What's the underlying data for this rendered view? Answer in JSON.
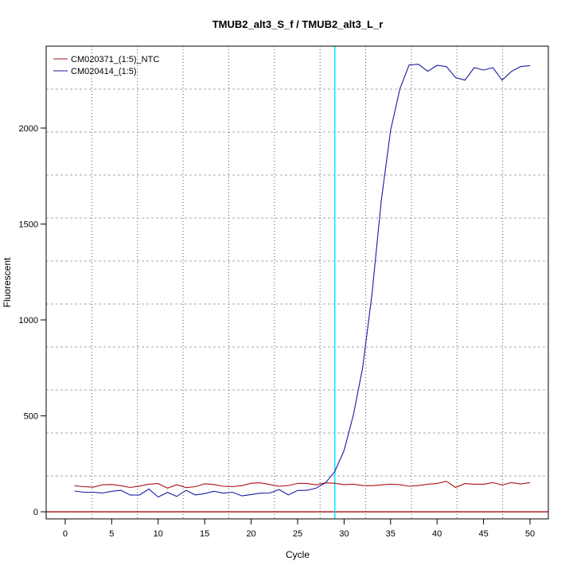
{
  "chart_data": {
    "type": "line",
    "title": "TMUB2_alt3_S_f / TMUB2_alt3_L_r",
    "xlabel": "Cycle",
    "ylabel": "Fluorescent",
    "xlim": [
      -2.05,
      51.97
    ],
    "ylim": [
      -37,
      2427
    ],
    "xticks": [
      0,
      5,
      10,
      15,
      20,
      25,
      30,
      35,
      40,
      45,
      50
    ],
    "yticks": [
      0,
      500,
      1000,
      1500,
      2000
    ],
    "grid": true,
    "legend_position": "top-left",
    "threshold_cycle": 29,
    "baseline": 0,
    "colors": {
      "threshold": "#00e5ff",
      "baseline": "#b22222"
    },
    "x": [
      1,
      2,
      3,
      4,
      5,
      6,
      7,
      8,
      9,
      10,
      11,
      12,
      13,
      14,
      15,
      16,
      17,
      18,
      19,
      20,
      21,
      22,
      23,
      24,
      25,
      26,
      27,
      28,
      29,
      30,
      31,
      32,
      33,
      34,
      35,
      36,
      37,
      38,
      39,
      40,
      41,
      42,
      43,
      44,
      45,
      46,
      47,
      48,
      49,
      50
    ],
    "series": [
      {
        "name": "CM020371_(1:5)_NTC",
        "color": "#aa1111",
        "values": [
          136,
          131,
          128,
          141,
          142,
          136,
          127,
          134,
          144,
          147,
          123,
          141,
          126,
          131,
          146,
          142,
          133,
          131,
          136,
          149,
          151,
          142,
          133,
          137,
          148,
          148,
          140,
          151,
          149,
          141,
          144,
          137,
          136,
          140,
          144,
          141,
          133,
          137,
          144,
          148,
          159,
          127,
          147,
          144,
          144,
          152,
          140,
          152,
          145,
          152
        ]
      },
      {
        "name": "CM020414_(1:5)",
        "color": "#1a1aa0",
        "values": [
          108,
          102,
          102,
          98,
          107,
          112,
          87,
          88,
          119,
          77,
          101,
          80,
          112,
          88,
          95,
          107,
          97,
          102,
          83,
          90,
          97,
          98,
          116,
          88,
          111,
          112,
          123,
          151,
          210,
          320,
          506,
          751,
          1133,
          1622,
          1988,
          2205,
          2329,
          2333,
          2296,
          2327,
          2321,
          2263,
          2250,
          2315,
          2302,
          2315,
          2250,
          2295,
          2321,
          2325
        ]
      }
    ]
  }
}
